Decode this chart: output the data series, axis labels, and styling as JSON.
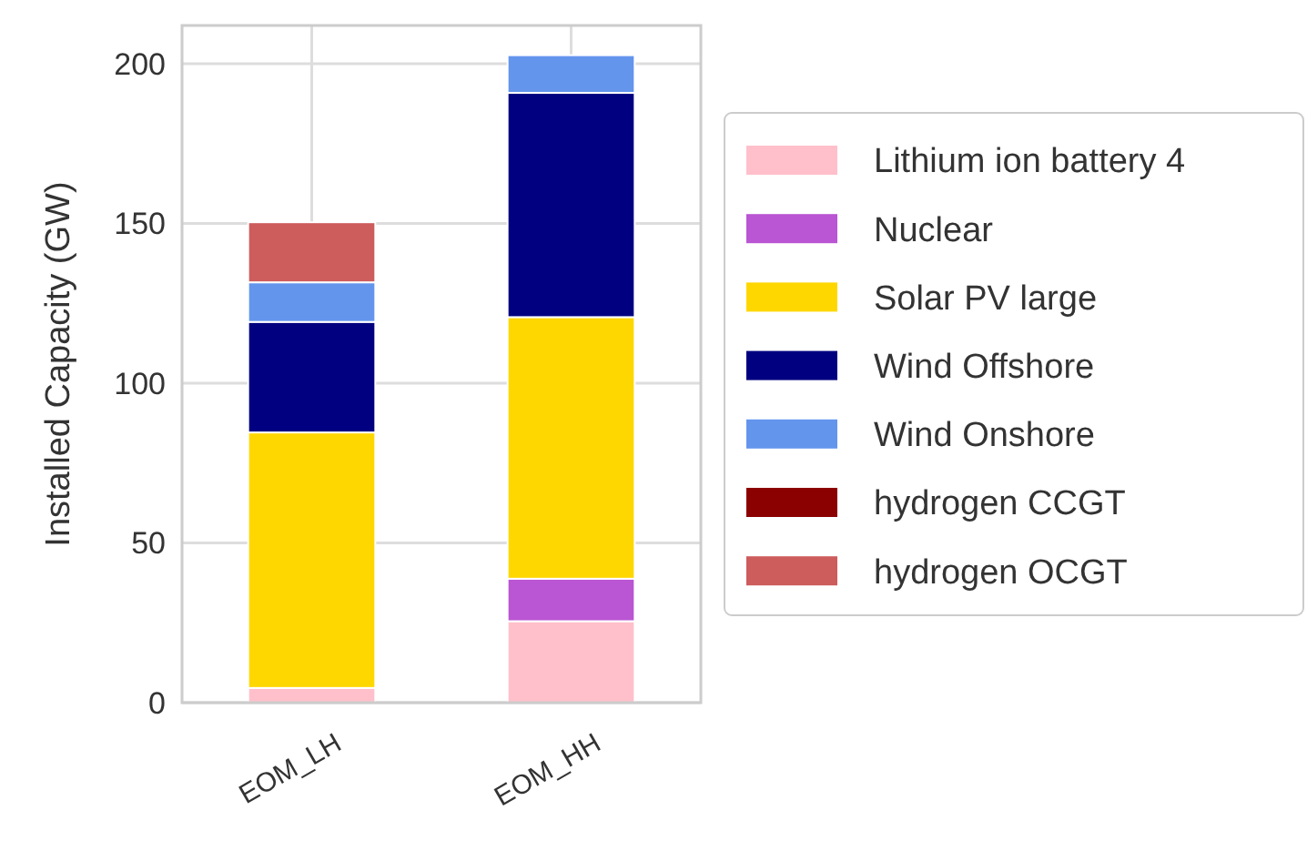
{
  "chart_data": {
    "type": "bar",
    "stacked": true,
    "ylabel": "Installed Capacity (GW)",
    "categories": [
      "EOM_LH",
      "EOM_HH"
    ],
    "series": [
      {
        "name": "Lithium ion battery 4",
        "color": "#ffc0cb",
        "values": [
          4.6,
          25.5
        ]
      },
      {
        "name": "Nuclear",
        "color": "#ba55d3",
        "values": [
          0,
          13.3
        ]
      },
      {
        "name": "Solar PV large",
        "color": "#ffd700",
        "values": [
          80,
          81.9
        ]
      },
      {
        "name": "Wind Offshore",
        "color": "#000080",
        "values": [
          34.6,
          70.2
        ]
      },
      {
        "name": "Wind Onshore",
        "color": "#6495ed",
        "values": [
          12.4,
          11.8
        ]
      },
      {
        "name": "hydrogen CCGT",
        "color": "#8b0000",
        "values": [
          0,
          0
        ]
      },
      {
        "name": "hydrogen OCGT",
        "color": "#cd5c5c",
        "values": [
          18.8,
          0
        ]
      }
    ],
    "ylim": [
      0,
      212
    ],
    "yticks": [
      0,
      50,
      100,
      150,
      200
    ],
    "grid": true,
    "legend": "right"
  }
}
